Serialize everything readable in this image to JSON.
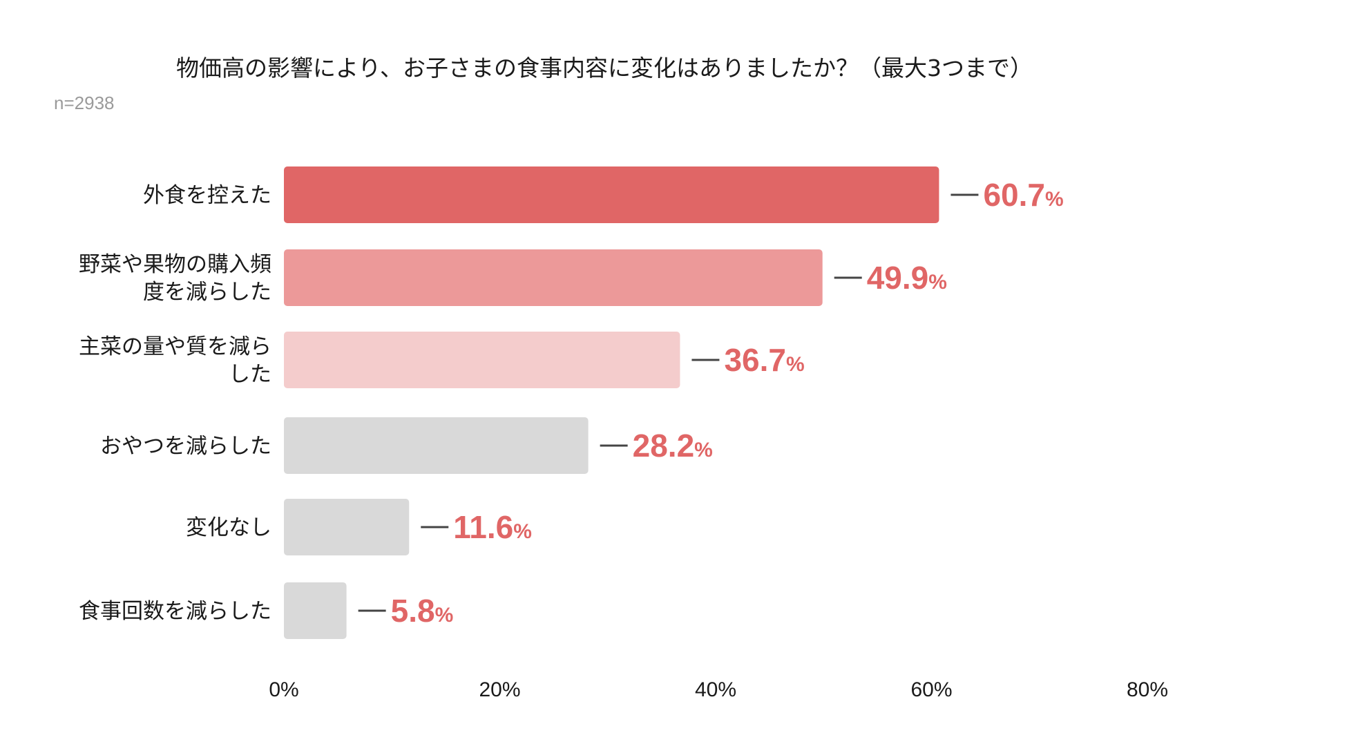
{
  "chart_data": {
    "type": "bar",
    "orientation": "horizontal",
    "title": "物価高の影響により、お子さまの食事内容に変化はありましたか？（最大3つまで）",
    "note": "n=2938",
    "categories": [
      "外食を控えた",
      "野菜や果物の購入頻度を減らした",
      "主菜の量や質を減らした",
      "おやつを減らした",
      "変化なし",
      "食事回数を減らした"
    ],
    "category_lines": [
      [
        "外食を控えた"
      ],
      [
        "野菜や果物の購入頻",
        "度を減らした"
      ],
      [
        "主菜の量や質を減ら",
        "した"
      ],
      [
        "おやつを減らした"
      ],
      [
        "変化なし"
      ],
      [
        "食事回数を減らした"
      ]
    ],
    "values": [
      60.7,
      49.9,
      36.7,
      28.2,
      11.6,
      5.8
    ],
    "value_labels": [
      "60.7",
      "49.9",
      "36.7",
      "28.2",
      "11.6",
      "5.8"
    ],
    "value_suffix": "%",
    "bar_colors": [
      "#e06666",
      "#ec9999",
      "#f4cccc",
      "#d9d9d9",
      "#d9d9d9",
      "#d9d9d9"
    ],
    "label_color": "#e06666",
    "connector_color": "#444444",
    "xlim": [
      0,
      80
    ],
    "xticks": [
      0,
      20,
      40,
      60,
      80
    ],
    "xtick_labels": [
      "0%",
      "20%",
      "40%",
      "60%",
      "80%"
    ],
    "grid": false,
    "legend": "none"
  }
}
